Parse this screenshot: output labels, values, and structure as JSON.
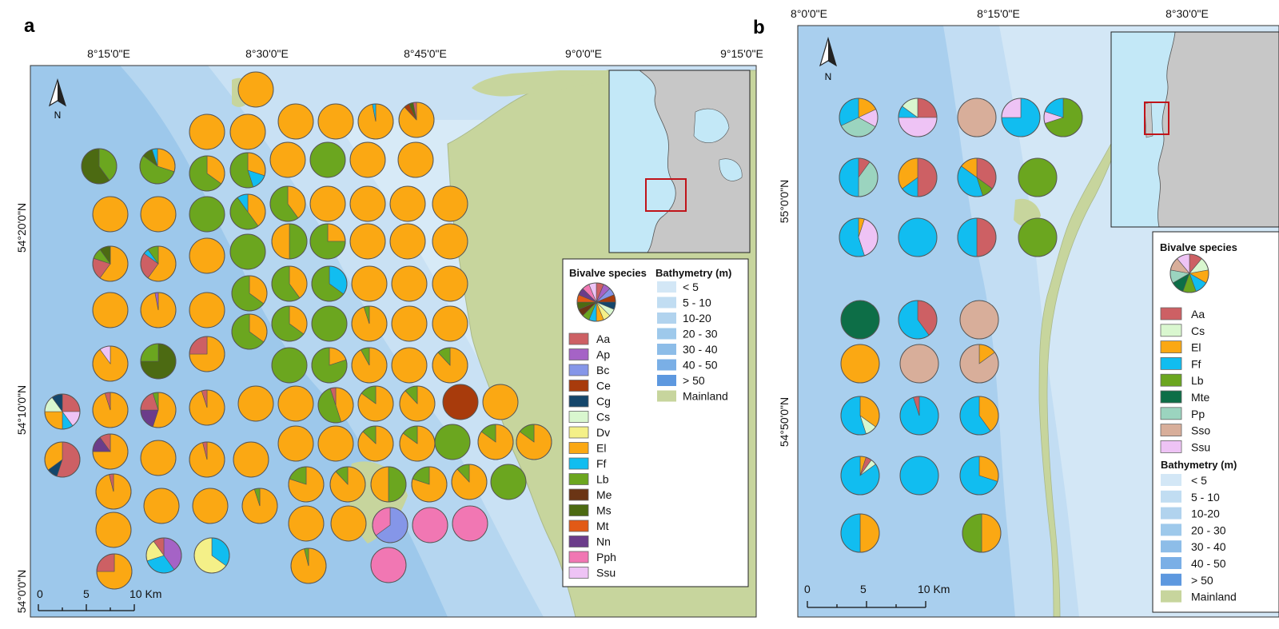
{
  "panel_a": {
    "letter": "a",
    "lon_labels": [
      "8°15'0\"E",
      "8°30'0\"E",
      "8°45'0\"E",
      "9°0'0\"E",
      "9°15'0\"E"
    ],
    "lat_labels": [
      "54°20'0\"N",
      "54°10'0\"N",
      "54°0'0\"N"
    ],
    "north_label": "N",
    "scale": [
      "0",
      "5",
      "10 Km"
    ],
    "legend_species_title": "Bivalve species",
    "legend_bathy_title": "Bathymetry (m)",
    "species": [
      {
        "code": "Aa",
        "color": "#cd6064"
      },
      {
        "code": "Ap",
        "color": "#a563c6"
      },
      {
        "code": "Bc",
        "color": "#8596e8"
      },
      {
        "code": "Ce",
        "color": "#a83b0c"
      },
      {
        "code": "Cg",
        "color": "#14466b"
      },
      {
        "code": "Cs",
        "color": "#d9f7cf"
      },
      {
        "code": "Dv",
        "color": "#f4f088"
      },
      {
        "code": "El",
        "color": "#fba813"
      },
      {
        "code": "Ff",
        "color": "#11bdf0"
      },
      {
        "code": "Lb",
        "color": "#6ba61f"
      },
      {
        "code": "Me",
        "color": "#6b3515"
      },
      {
        "code": "Ms",
        "color": "#4c6a12"
      },
      {
        "code": "Mt",
        "color": "#e25a16"
      },
      {
        "code": "Nn",
        "color": "#6b3c8a"
      },
      {
        "code": "Pph",
        "color": "#f177b3"
      },
      {
        "code": "Ssu",
        "color": "#eec3f5"
      }
    ],
    "bathymetry": [
      {
        "label": "< 5",
        "color": "#d3e7f6"
      },
      {
        "label": "5 - 10",
        "color": "#c1ddf2"
      },
      {
        "label": "10-20",
        "color": "#b1d3ee"
      },
      {
        "label": "20 - 30",
        "color": "#9ec9eb"
      },
      {
        "label": "30 - 40",
        "color": "#8dbde8"
      },
      {
        "label": "40 - 50",
        "color": "#7aafe6"
      },
      {
        "label": "> 50",
        "color": "#5d98df"
      },
      {
        "label": "Mainland",
        "color": "#c7d59d"
      }
    ]
  },
  "panel_b": {
    "letter": "b",
    "lon_labels": [
      "8°0'0\"E",
      "8°15'0\"E",
      "8°30'0\"E"
    ],
    "lat_labels": [
      "55°0'0\"N",
      "54°50'0\"N"
    ],
    "north_label": "N",
    "scale": [
      "0",
      "5",
      "10 Km"
    ],
    "legend_species_title": "Bivalve species",
    "legend_bathy_title": "Bathymetry (m)",
    "species": [
      {
        "code": "Aa",
        "color": "#cd6064"
      },
      {
        "code": "Cs",
        "color": "#d9f7cf"
      },
      {
        "code": "El",
        "color": "#fba813"
      },
      {
        "code": "Ff",
        "color": "#11bdf0"
      },
      {
        "code": "Lb",
        "color": "#6ba61f"
      },
      {
        "code": "Mte",
        "color": "#0d6e47"
      },
      {
        "code": "Pp",
        "color": "#9bd4bf"
      },
      {
        "code": "Sso",
        "color": "#d8ae9a"
      },
      {
        "code": "Ssu",
        "color": "#eec3f5"
      }
    ],
    "bathymetry": [
      {
        "label": "< 5",
        "color": "#d3e7f6"
      },
      {
        "label": "5 - 10",
        "color": "#c1ddf2"
      },
      {
        "label": "10-20",
        "color": "#b1d3ee"
      },
      {
        "label": "20 - 30",
        "color": "#9ec9eb"
      },
      {
        "label": "30 - 40",
        "color": "#8dbde8"
      },
      {
        "label": "40 - 50",
        "color": "#7aafe6"
      },
      {
        "label": "> 50",
        "color": "#5d98df"
      },
      {
        "label": "Mainland",
        "color": "#c7d59d"
      }
    ]
  }
}
